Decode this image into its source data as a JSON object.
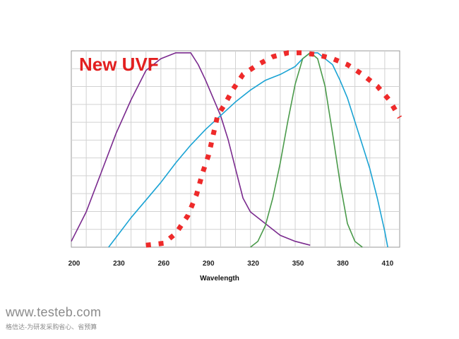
{
  "chart_data": {
    "type": "line",
    "title": "New UVF",
    "xlabel": "Wavelength",
    "ylabel": "",
    "xlim": [
      200,
      420
    ],
    "ylim": [
      0,
      100
    ],
    "x_ticks": [
      200,
      230,
      260,
      290,
      320,
      350,
      380,
      410
    ],
    "grid": true,
    "legend": "none",
    "series": [
      {
        "color": "#7a2a8e",
        "style": "solid",
        "points": [
          [
            200,
            3
          ],
          [
            210,
            18
          ],
          [
            220,
            38
          ],
          [
            230,
            58
          ],
          [
            240,
            75
          ],
          [
            250,
            90
          ],
          [
            260,
            96
          ],
          [
            270,
            99
          ],
          [
            280,
            99
          ],
          [
            285,
            93
          ],
          [
            290,
            85
          ],
          [
            300,
            67
          ],
          [
            305,
            55
          ],
          [
            310,
            40
          ],
          [
            315,
            25
          ],
          [
            320,
            18
          ],
          [
            330,
            12
          ],
          [
            340,
            6
          ],
          [
            350,
            3
          ],
          [
            360,
            1
          ]
        ]
      },
      {
        "color": "#1aa3d4",
        "style": "solid",
        "points": [
          [
            225,
            0
          ],
          [
            230,
            5
          ],
          [
            240,
            15
          ],
          [
            250,
            24
          ],
          [
            260,
            33
          ],
          [
            270,
            43
          ],
          [
            280,
            52
          ],
          [
            290,
            60
          ],
          [
            300,
            67
          ],
          [
            310,
            74
          ],
          [
            320,
            80
          ],
          [
            330,
            85
          ],
          [
            340,
            88
          ],
          [
            350,
            92
          ],
          [
            355,
            96
          ],
          [
            360,
            99
          ],
          [
            365,
            99
          ],
          [
            370,
            96
          ],
          [
            375,
            93
          ],
          [
            380,
            85
          ],
          [
            385,
            76
          ],
          [
            390,
            64
          ],
          [
            395,
            52
          ],
          [
            400,
            40
          ],
          [
            405,
            25
          ],
          [
            410,
            8
          ],
          [
            412,
            0
          ]
        ]
      },
      {
        "color": "#4a9a4a",
        "style": "solid",
        "points": [
          [
            320,
            0
          ],
          [
            325,
            3
          ],
          [
            330,
            11
          ],
          [
            335,
            25
          ],
          [
            340,
            43
          ],
          [
            345,
            64
          ],
          [
            350,
            83
          ],
          [
            355,
            96
          ],
          [
            360,
            99
          ],
          [
            362,
            98
          ],
          [
            365,
            96
          ],
          [
            370,
            82
          ],
          [
            375,
            58
          ],
          [
            380,
            33
          ],
          [
            385,
            12
          ],
          [
            390,
            3
          ],
          [
            395,
            0
          ]
        ]
      },
      {
        "color": "#ee2a2a",
        "style": "dotted",
        "points": [
          [
            250,
            1
          ],
          [
            262,
            2
          ],
          [
            270,
            7
          ],
          [
            278,
            16
          ],
          [
            284,
            27
          ],
          [
            288,
            38
          ],
          [
            292,
            47
          ],
          [
            295,
            57
          ],
          [
            298,
            67
          ],
          [
            303,
            73
          ],
          [
            308,
            80
          ],
          [
            315,
            88
          ],
          [
            325,
            93
          ],
          [
            335,
            97
          ],
          [
            345,
            99
          ],
          [
            355,
            99
          ],
          [
            365,
            98
          ],
          [
            375,
            96
          ],
          [
            385,
            93
          ],
          [
            395,
            88
          ],
          [
            405,
            82
          ],
          [
            413,
            75
          ],
          [
            420,
            66
          ]
        ]
      }
    ]
  },
  "watermark": {
    "site": "www.testeb.com",
    "tagline": "格信达-为研发采购省心、省预算"
  }
}
